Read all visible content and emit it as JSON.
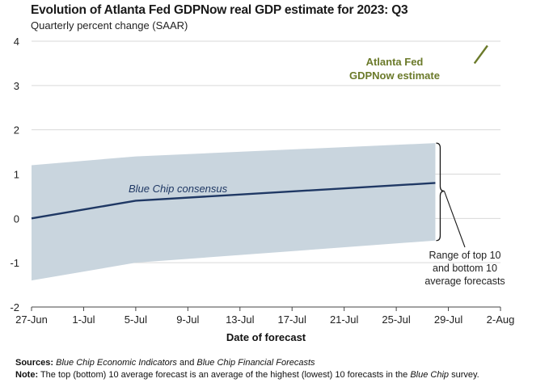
{
  "chart_data": {
    "type": "line",
    "title": "Evolution of Atlanta Fed GDPNow real GDP estimate for 2023: Q3",
    "subtitle": "Quarterly percent change (SAAR)",
    "xlabel": "Date of forecast",
    "ylabel": "",
    "x_ticks": [
      "27-Jun",
      "1-Jul",
      "5-Jul",
      "9-Jul",
      "13-Jul",
      "17-Jul",
      "21-Jul",
      "25-Jul",
      "29-Jul",
      "2-Aug"
    ],
    "xlim_days": [
      0,
      36
    ],
    "y_ticks": [
      4,
      3,
      2,
      1,
      0,
      -1,
      -2
    ],
    "ylim": [
      -2,
      4
    ],
    "grid": "horizontal",
    "series": [
      {
        "name": "Blue Chip consensus",
        "kind": "line",
        "color": "#1f3864",
        "x": [
          "27-Jun",
          "5-Jul",
          "28-Jul"
        ],
        "values": [
          0.0,
          0.4,
          0.8
        ]
      },
      {
        "name": "Range of top 10 and bottom 10 average forecasts",
        "kind": "band",
        "color": "#c9d5de",
        "x": [
          "27-Jun",
          "5-Jul",
          "28-Jul"
        ],
        "upper": [
          1.2,
          1.4,
          1.7
        ],
        "lower": [
          -1.4,
          -1.0,
          -0.5
        ]
      },
      {
        "name": "Atlanta Fed GDPNow estimate",
        "kind": "line",
        "color": "#6b7a2a",
        "x": [
          "31-Jul",
          "1-Aug"
        ],
        "values": [
          3.5,
          3.9
        ]
      }
    ],
    "annotations": {
      "gdpnow_line1": "Atlanta Fed",
      "gdpnow_line2": "GDPNow estimate",
      "bluechip": "Blue Chip consensus",
      "range_line1": "Range of top 10",
      "range_line2": "and bottom 10",
      "range_line3": "average forecasts"
    }
  },
  "footer": {
    "sources_label": "Sources:",
    "sources_src1": "Blue Chip Economic Indicators",
    "sources_and": " and ",
    "sources_src2": "Blue Chip Financial Forecasts",
    "note_label": "Note:",
    "note_text": " The top (bottom) 10 average forecast is an average of the highest (lowest) 10 forecasts in the ",
    "note_src": "Blue Chip",
    "note_end": " survey."
  }
}
